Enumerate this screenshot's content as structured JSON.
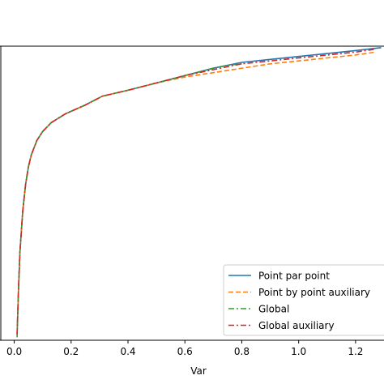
{
  "chart_data": {
    "type": "line",
    "xlabel": "Var",
    "ylabel": "",
    "xlim": [
      -0.05,
      1.3
    ],
    "ylim": [
      0,
      1
    ],
    "xticks": [
      "0.0",
      "0.2",
      "0.4",
      "0.6",
      "0.8",
      "1.0",
      "1.2"
    ],
    "xtick_values": [
      0.0,
      0.2,
      0.4,
      0.6,
      0.8,
      1.0,
      1.2
    ],
    "legend_placement": "lower-right",
    "grid": false,
    "series": [
      {
        "name": "Point par point",
        "color": "#1f77b4",
        "style": "solid",
        "x": [
          0.01,
          0.015,
          0.02,
          0.03,
          0.04,
          0.05,
          0.06,
          0.08,
          0.1,
          0.13,
          0.18,
          0.25,
          0.31,
          0.4,
          0.5,
          0.6,
          0.7,
          0.8,
          0.9,
          1.0,
          1.1,
          1.2,
          1.29
        ],
        "y": [
          0.02,
          0.17,
          0.3,
          0.44,
          0.53,
          0.59,
          0.63,
          0.68,
          0.71,
          0.74,
          0.77,
          0.8,
          0.83,
          0.85,
          0.875,
          0.9,
          0.925,
          0.945,
          0.955,
          0.965,
          0.975,
          0.985,
          0.995
        ]
      },
      {
        "name": "Point by point auxiliary",
        "color": "#ff7f0e",
        "style": "dashed",
        "x": [
          0.01,
          0.015,
          0.02,
          0.03,
          0.04,
          0.05,
          0.06,
          0.08,
          0.1,
          0.13,
          0.18,
          0.25,
          0.31,
          0.4,
          0.5,
          0.6,
          0.7,
          0.8,
          0.9,
          1.0,
          1.1,
          1.2,
          1.27
        ],
        "y": [
          0.02,
          0.17,
          0.3,
          0.44,
          0.53,
          0.59,
          0.63,
          0.68,
          0.71,
          0.74,
          0.77,
          0.8,
          0.83,
          0.85,
          0.875,
          0.895,
          0.91,
          0.925,
          0.94,
          0.95,
          0.96,
          0.97,
          0.98
        ]
      },
      {
        "name": "Global",
        "color": "#2ca02c",
        "style": "dashdot",
        "x": [
          0.01,
          0.015,
          0.02,
          0.03,
          0.04,
          0.05,
          0.06,
          0.08,
          0.1,
          0.13,
          0.18,
          0.25,
          0.31,
          0.4,
          0.5,
          0.6,
          0.7,
          0.75,
          0.8
        ],
        "y": [
          0.01,
          0.17,
          0.3,
          0.44,
          0.53,
          0.59,
          0.63,
          0.68,
          0.71,
          0.74,
          0.77,
          0.8,
          0.83,
          0.85,
          0.875,
          0.9,
          0.925,
          0.935,
          0.94
        ]
      },
      {
        "name": "Global auxiliary",
        "color": "#d62728",
        "style": "dashdot",
        "x": [
          0.01,
          0.015,
          0.02,
          0.03,
          0.04,
          0.05,
          0.06,
          0.08,
          0.1,
          0.13,
          0.18,
          0.25,
          0.31,
          0.4,
          0.5,
          0.6,
          0.7,
          0.8,
          0.9,
          1.0,
          1.1,
          1.2,
          1.27
        ],
        "y": [
          0.02,
          0.17,
          0.3,
          0.44,
          0.53,
          0.59,
          0.63,
          0.68,
          0.71,
          0.74,
          0.77,
          0.8,
          0.83,
          0.85,
          0.875,
          0.9,
          0.92,
          0.94,
          0.95,
          0.96,
          0.97,
          0.98,
          0.99
        ]
      }
    ]
  }
}
